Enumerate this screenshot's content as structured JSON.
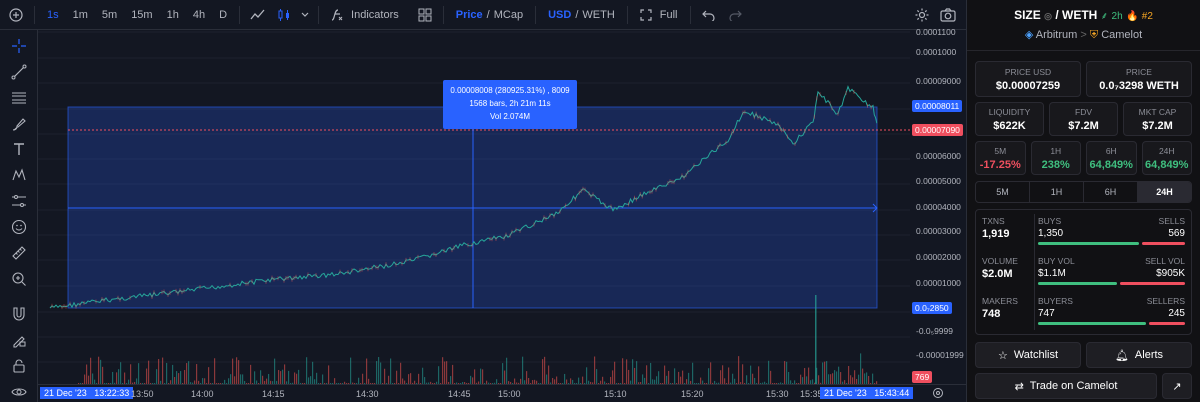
{
  "topbar": {
    "intervals": [
      "1s",
      "1m",
      "5m",
      "15m",
      "1h",
      "4h",
      "D"
    ],
    "active_interval": "1s",
    "indicators_label": "Indicators",
    "price_label": "Price",
    "price_sep": "/",
    "mcap_label": "MCap",
    "usd_label": "USD",
    "currency_sep": "/",
    "weth_label": "WETH",
    "full_label": "Full"
  },
  "price_axis": {
    "labels": [
      "0.0001100",
      "0.0001000",
      "0.00009000",
      "0.00007000",
      "0.00006000",
      "0.00005000",
      "0.00004000",
      "0.00003000",
      "0.00002000",
      "0.00001000",
      "-0.0₅9999",
      "-0.00001999"
    ],
    "tag_top": "0.00008011",
    "tag_current": "0.00007090",
    "tag_bottom": "0.0₇2850",
    "volume_tag": "769"
  },
  "time_axis": {
    "labels": [
      "13:50",
      "14:00",
      "14:15",
      "14:30",
      "14:45",
      "15:00",
      "15:10",
      "15:20",
      "15:30",
      "15:35"
    ],
    "start_date": "21 Dec '23",
    "start_time": "13:22:33",
    "end_date": "21 Dec '23",
    "end_time": "15:43:44"
  },
  "tooltip": {
    "line1": "0.00008008 (280925.31%) , 8009",
    "line2": "1568 bars, 2h 21m 11s",
    "line3": "Vol 2.074M"
  },
  "panel": {
    "symbol": "SIZE",
    "pair_sep": "/",
    "quote": "WETH",
    "age": "2h",
    "rank": "#2",
    "chain": "Arbitrum",
    "crumb_sep": ">",
    "dex": "Camelot",
    "price_usd_label": "PRICE USD",
    "price_usd": "$0.00007259",
    "price_label": "PRICE",
    "price_weth": "0.0₇3298 WETH",
    "liquidity_label": "LIQUIDITY",
    "liquidity": "$622K",
    "fdv_label": "FDV",
    "fdv": "$7.2M",
    "mktcap_label": "MKT CAP",
    "mktcap": "$7.2M",
    "changes": [
      {
        "label": "5M",
        "value": "-17.25%"
      },
      {
        "label": "1H",
        "value": "238%"
      },
      {
        "label": "6H",
        "value": "64,849%"
      },
      {
        "label": "24H",
        "value": "64,849%"
      }
    ],
    "tabs": [
      "5M",
      "1H",
      "6H",
      "24H"
    ],
    "selected_tab": "24H",
    "txns_label": "TXNS",
    "txns": "1,919",
    "buys_label": "BUYS",
    "buys": "1,350",
    "sells_label": "SELLS",
    "sells": "569",
    "volume_label": "VOLUME",
    "volume": "$2.0M",
    "buy_vol_label": "BUY VOL",
    "buy_vol": "$1.1M",
    "sell_vol_label": "SELL VOL",
    "sell_vol": "$905K",
    "makers_label": "MAKERS",
    "makers": "748",
    "buyers_label": "BUYERS",
    "buyers": "747",
    "sellers_label": "SELLERS",
    "sellers": "245",
    "watchlist_label": "Watchlist",
    "alerts_label": "Alerts",
    "trade_label": "Trade on Camelot"
  },
  "colors": {
    "accent": "#2962ff",
    "up": "#3fbf7f",
    "down": "#ef4f5f",
    "badge": "#f5a524"
  }
}
